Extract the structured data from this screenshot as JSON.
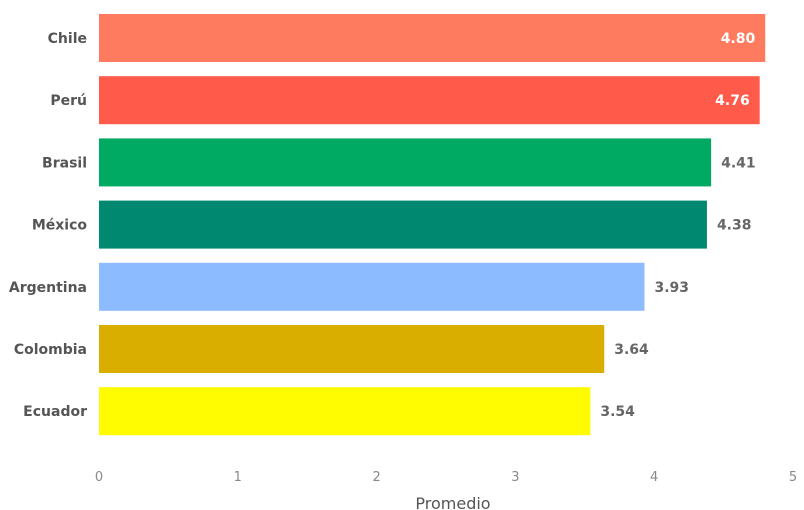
{
  "chart_data": {
    "type": "bar",
    "orientation": "horizontal",
    "categories": [
      "Chile",
      "Perú",
      "Brasil",
      "México",
      "Argentina",
      "Colombia",
      "Ecuador"
    ],
    "values": [
      4.8,
      4.76,
      4.41,
      4.38,
      3.93,
      3.64,
      3.54
    ],
    "value_labels": [
      "4.80",
      "4.76",
      "4.41",
      "4.38",
      "3.93",
      "3.64",
      "3.54"
    ],
    "colors": [
      "#FF7B5F",
      "#FF5A4A",
      "#00AA62",
      "#008870",
      "#8DBBFF",
      "#D9AE00",
      "#FFFB00"
    ],
    "xlabel": "Promedio",
    "xlim": [
      0,
      5
    ],
    "xticks": [
      0,
      1,
      2,
      3,
      4,
      5
    ],
    "xtick_labels": [
      "0",
      "1",
      "2",
      "3",
      "4",
      "5"
    ],
    "grid": false,
    "legend": "none"
  }
}
